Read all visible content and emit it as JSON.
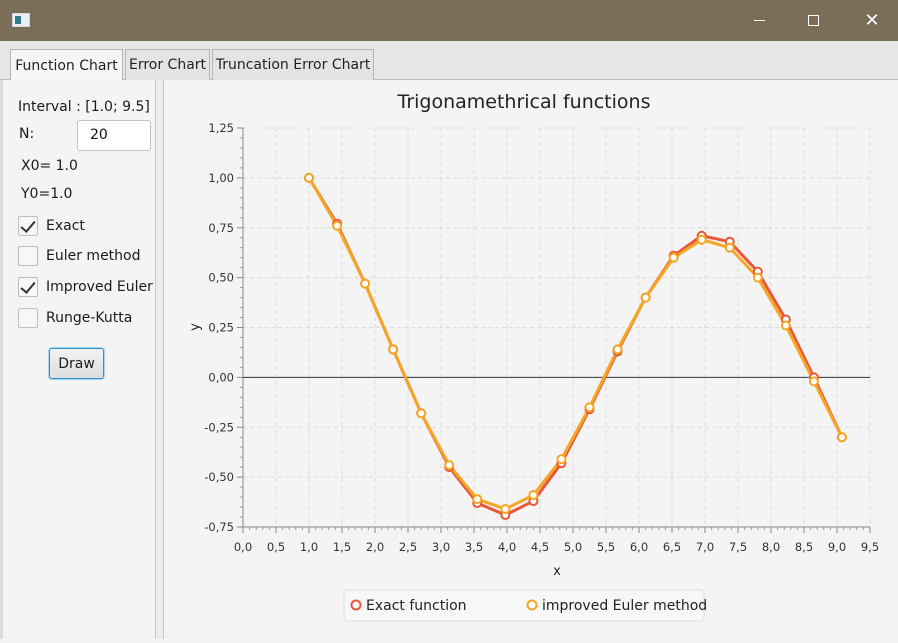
{
  "window": {
    "minimize_icon": "minimize-icon",
    "maximize_icon": "maximize-icon",
    "close_glyph": "✕"
  },
  "tabs": [
    {
      "label": "Function Chart",
      "active": true
    },
    {
      "label": "Error Chart",
      "active": false
    },
    {
      "label": "Truncation Error Chart",
      "active": false
    }
  ],
  "controls": {
    "interval_label": "Interval : [1.0; 9.5]",
    "n_label": "N:",
    "n_value": "20",
    "x0_label": "X0= 1.0",
    "y0_label": "Y0=1.0",
    "checkboxes": [
      {
        "label": "Exact",
        "checked": true
      },
      {
        "label": "Euler method",
        "checked": false
      },
      {
        "label": "Improved Euler",
        "checked": true
      },
      {
        "label": "Runge-Kutta",
        "checked": false
      }
    ],
    "draw_label": "Draw"
  },
  "chart_data": {
    "type": "line",
    "title": "Trigonamethrical functions",
    "xlabel": "x",
    "ylabel": "y",
    "xlim": [
      0.0,
      9.5
    ],
    "ylim": [
      -0.75,
      1.25
    ],
    "x_tick_labels": [
      "0,0",
      "0,5",
      "1,0",
      "1,5",
      "2,0",
      "2,5",
      "3,0",
      "3,5",
      "4,0",
      "4,5",
      "5,0",
      "5,5",
      "6,0",
      "6,5",
      "7,0",
      "7,5",
      "8,0",
      "8,5",
      "9,0",
      "9,5"
    ],
    "y_tick_labels": [
      "-0,75",
      "-0,50",
      "-0,25",
      "0,00",
      "0,25",
      "0,50",
      "0,75",
      "1,00",
      "1,25"
    ],
    "grid": true,
    "legend_position": "bottom",
    "x": [
      1.0,
      1.425,
      1.85,
      2.275,
      2.7,
      3.125,
      3.55,
      3.975,
      4.4,
      4.825,
      5.25,
      5.675,
      6.1,
      6.525,
      6.95,
      7.375,
      7.8,
      8.225,
      8.65,
      9.075
    ],
    "series": [
      {
        "name": "Exact function",
        "color": "#e8573a",
        "values": [
          1.0,
          0.77,
          0.47,
          0.14,
          -0.18,
          -0.45,
          -0.63,
          -0.69,
          -0.62,
          -0.43,
          -0.16,
          0.13,
          0.4,
          0.61,
          0.71,
          0.68,
          0.53,
          0.29,
          0.0,
          -0.3
        ]
      },
      {
        "name": "improved Euler method",
        "color": "#f5a623",
        "values": [
          1.0,
          0.76,
          0.47,
          0.14,
          -0.18,
          -0.44,
          -0.61,
          -0.66,
          -0.59,
          -0.41,
          -0.15,
          0.14,
          0.4,
          0.6,
          0.69,
          0.65,
          0.5,
          0.26,
          -0.02,
          -0.3
        ]
      }
    ]
  }
}
